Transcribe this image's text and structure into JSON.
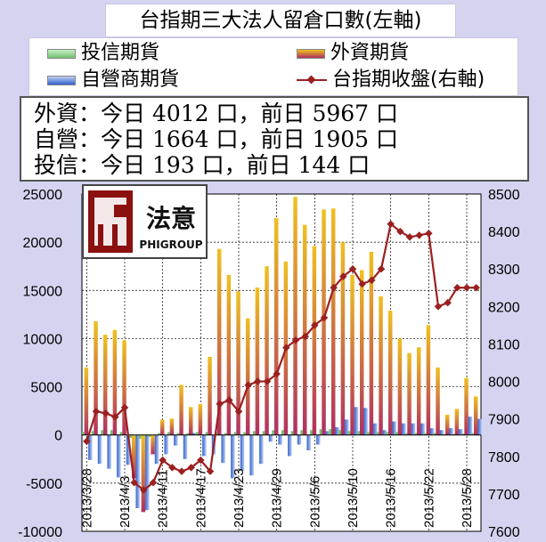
{
  "title": "台指期三大法人留倉口數(左軸)",
  "legend": {
    "investment_trust": "投信期貨",
    "foreign": "外資期貨",
    "dealer": "自營商期貨",
    "close": "台指期收盤(右軸)"
  },
  "summary": {
    "foreign_line": "外資：今日 4012 口，前日 5967 口",
    "dealer_line": "自營：今日 1664 口，前日 1905 口",
    "trust_line": "投信：今日 193 口，前日 144 口"
  },
  "logo": {
    "glyph": "法意",
    "text": "PHIGROUP"
  },
  "colors": {
    "foreign": "#f0c020",
    "foreign_base": "#b03060",
    "dealer": "#3060d0",
    "dealer_light": "#c0d0f0",
    "trust": "#70c070",
    "close_line": "#9b2020",
    "background": "#d4d4f0"
  },
  "chart_data": {
    "type": "bar",
    "left_axis": {
      "min": -10000,
      "max": 25000,
      "step": 5000,
      "ticks": [
        "-10000",
        "-5000",
        "0",
        "5000",
        "10000",
        "15000",
        "20000",
        "25000"
      ]
    },
    "right_axis": {
      "min": 7600,
      "max": 8500,
      "step": 100,
      "ticks": [
        "7600",
        "7700",
        "7800",
        "7900",
        "8000",
        "8100",
        "8200",
        "8300",
        "8400",
        "8500"
      ]
    },
    "date_labels": [
      "2013/3/28",
      "2013/4/3",
      "2013/4/11",
      "2013/4/17",
      "2013/4/23",
      "2013/4/29",
      "2013/5/6",
      "2013/5/10",
      "2013/5/16",
      "2013/5/22",
      "2013/5/28"
    ],
    "date_label_index": [
      0,
      4,
      8,
      12,
      16,
      20,
      24,
      28,
      32,
      36,
      40
    ],
    "grid": true,
    "series": [
      {
        "name": "外資期貨",
        "values": [
          7000,
          11800,
          10400,
          10900,
          9800,
          -4500,
          -8000,
          -2000,
          1600,
          1700,
          5200,
          2900,
          3200,
          8100,
          19300,
          16600,
          14900,
          12100,
          15300,
          17500,
          22500,
          18000,
          24700,
          21800,
          19600,
          23400,
          23500,
          20000,
          16600,
          17100,
          19000,
          14400,
          12900,
          10000,
          8500,
          9100,
          11400,
          7000,
          2100,
          2700,
          5900,
          4000
        ]
      },
      {
        "name": "自營商期貨",
        "values": [
          -2600,
          -3000,
          -3500,
          -4400,
          -3100,
          -7600,
          -7800,
          -3000,
          -2000,
          -1100,
          -2500,
          200,
          -2200,
          -2000,
          -2900,
          -4500,
          -3700,
          -4200,
          -3000,
          -700,
          -1000,
          -2200,
          -1000,
          -1600,
          -1000,
          400,
          800,
          1600,
          2900,
          2800,
          1200,
          500,
          1400,
          1200,
          1200,
          1200,
          700,
          500,
          700,
          600,
          1900,
          1664
        ]
      },
      {
        "name": "投信期貨",
        "values": [
          300,
          400,
          500,
          500,
          300,
          -300,
          -400,
          -200,
          200,
          300,
          200,
          200,
          300,
          300,
          300,
          200,
          300,
          300,
          400,
          400,
          500,
          500,
          400,
          500,
          500,
          600,
          600,
          500,
          400,
          400,
          300,
          300,
          300,
          300,
          200,
          200,
          200,
          200,
          100,
          100,
          144,
          193
        ]
      },
      {
        "name": "台指期收盤(右軸)",
        "values": [
          7840,
          7920,
          7915,
          7905,
          7930,
          7730,
          7710,
          7730,
          7790,
          7770,
          7760,
          7770,
          7790,
          7760,
          7940,
          7950,
          7920,
          7990,
          8000,
          8000,
          8020,
          8090,
          8110,
          8120,
          8150,
          8170,
          8250,
          8280,
          8300,
          8260,
          8270,
          8300,
          8420,
          8400,
          8385,
          8390,
          8395,
          8200,
          8210,
          8250,
          8250,
          8250
        ]
      }
    ]
  }
}
